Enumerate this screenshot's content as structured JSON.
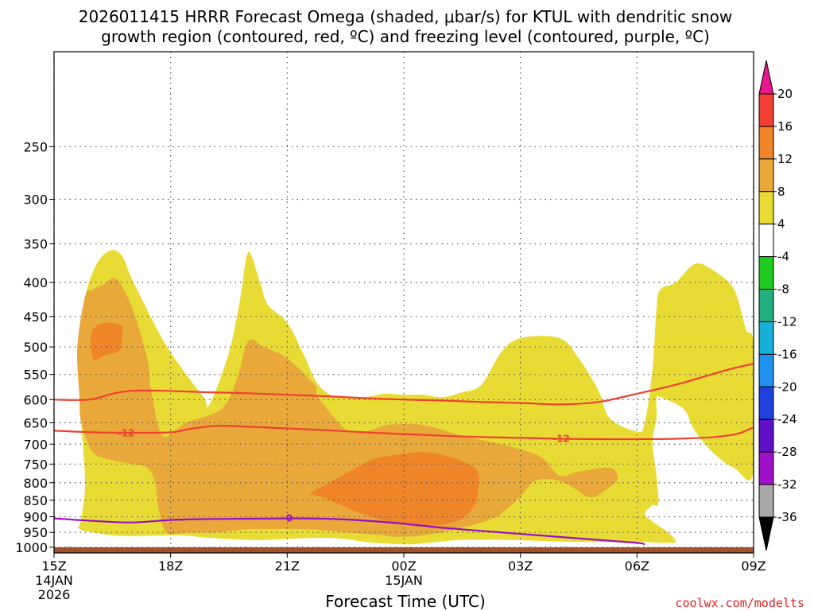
{
  "chart_data": {
    "type": "time-height cross section (filled contour)",
    "title": "2026011415 HRRR Forecast Omega (shaded, μbar/s) for KTUL with dendritic snow growth region (contoured, red, ºC) and freezing level (contoured, purple, ºC)",
    "title_line1": "2026011415 HRRR Forecast Omega (shaded, μbar/s) for KTUL with dendritic snow",
    "title_line2": "growth region (contoured, red, ºC) and freezing level (contoured, purple, ºC)",
    "xlabel": "Forecast Time (UTC)",
    "ylabel": "",
    "credit": "coolwx.com/modelts",
    "x_range_hours": [
      0,
      18
    ],
    "y_range_hpa": [
      1020,
      180
    ],
    "y_ticks": [
      250,
      300,
      350,
      400,
      450,
      500,
      550,
      600,
      650,
      700,
      750,
      800,
      850,
      900,
      950,
      1000
    ],
    "x_ticks": [
      {
        "hour": 0,
        "label": "15Z",
        "date": "14JAN",
        "year": "2026"
      },
      {
        "hour": 3,
        "label": "18Z"
      },
      {
        "hour": 6,
        "label": "21Z"
      },
      {
        "hour": 9,
        "label": "00Z",
        "date": "15JAN"
      },
      {
        "hour": 12,
        "label": "03Z"
      },
      {
        "hour": 15,
        "label": "06Z"
      },
      {
        "hour": 18,
        "label": "09Z"
      }
    ],
    "colorbar": {
      "levels": [
        20,
        16,
        12,
        8,
        4,
        -4,
        -8,
        -12,
        -16,
        -20,
        -24,
        -28,
        -32,
        -36
      ],
      "bins": [
        {
          "range": ">20",
          "color": "#e8168e"
        },
        {
          "range": "16 to 20",
          "color": "#f24034"
        },
        {
          "range": "12 to 16",
          "color": "#ef8428"
        },
        {
          "range": "8 to 12",
          "color": "#e8a83a"
        },
        {
          "range": "4 to 8",
          "color": "#e8dc34"
        },
        {
          "range": "-4 to 4",
          "color": "#ffffff"
        },
        {
          "range": "-8 to -4",
          "color": "#20cc20"
        },
        {
          "range": "-12 to -8",
          "color": "#20b080"
        },
        {
          "range": "-16 to -12",
          "color": "#16b0d8"
        },
        {
          "range": "-20 to -16",
          "color": "#1e90f0"
        },
        {
          "range": "-24 to -20",
          "color": "#2040e0"
        },
        {
          "range": "-28 to -24",
          "color": "#6010c8"
        },
        {
          "range": "-32 to -28",
          "color": "#a010c8"
        },
        {
          "range": "-36 to -32",
          "color": "#a8a8a8"
        },
        {
          "range": "<-36",
          "color": "#000000"
        }
      ]
    },
    "omega_regions": [
      {
        "level": "4 to 8",
        "color": "#e8dc34",
        "points": [
          [
            0.65,
            938
          ],
          [
            0.7,
            905
          ],
          [
            0.8,
            800
          ],
          [
            0.7,
            640
          ],
          [
            0.65,
            500
          ],
          [
            0.8,
            420
          ],
          [
            1.1,
            375
          ],
          [
            1.45,
            358
          ],
          [
            1.75,
            365
          ],
          [
            2.0,
            395
          ],
          [
            2.4,
            440
          ],
          [
            2.8,
            488
          ],
          [
            3.3,
            540
          ],
          [
            3.85,
            595
          ],
          [
            4.0,
            610
          ],
          [
            4.5,
            510
          ],
          [
            4.8,
            420
          ],
          [
            5.0,
            360
          ],
          [
            5.3,
            400
          ],
          [
            5.5,
            432
          ],
          [
            6.0,
            460
          ],
          [
            6.4,
            510
          ],
          [
            6.8,
            570
          ],
          [
            7.3,
            595
          ],
          [
            8.0,
            595
          ],
          [
            8.5,
            588
          ],
          [
            9.0,
            590
          ],
          [
            9.5,
            590
          ],
          [
            10.0,
            595
          ],
          [
            10.5,
            585
          ],
          [
            11.0,
            570
          ],
          [
            11.5,
            510
          ],
          [
            12.0,
            485
          ],
          [
            13.0,
            485
          ],
          [
            13.5,
            520
          ],
          [
            14.0,
            580
          ],
          [
            14.3,
            640
          ],
          [
            15.0,
            670
          ],
          [
            15.2,
            650
          ],
          [
            15.4,
            540
          ],
          [
            15.5,
            440
          ],
          [
            15.6,
            410
          ],
          [
            16.0,
            400
          ],
          [
            16.5,
            375
          ],
          [
            17.0,
            385
          ],
          [
            17.5,
            410
          ],
          [
            17.8,
            470
          ],
          [
            18.0,
            500
          ],
          [
            18.0,
            770
          ],
          [
            17.5,
            760
          ],
          [
            17.0,
            725
          ],
          [
            16.5,
            670
          ],
          [
            16.2,
            620
          ],
          [
            15.6,
            595
          ],
          [
            15.5,
            600
          ],
          [
            15.5,
            640
          ],
          [
            15.4,
            695
          ],
          [
            15.5,
            780
          ],
          [
            15.55,
            860
          ],
          [
            15.4,
            865
          ],
          [
            15.2,
            890
          ],
          [
            15.4,
            915
          ],
          [
            15.8,
            950
          ],
          [
            16.0,
            980
          ],
          [
            15.8,
            985
          ],
          [
            15.0,
            982
          ],
          [
            13.5,
            982
          ],
          [
            12.5,
            978
          ],
          [
            11.5,
            975
          ],
          [
            10.5,
            975
          ],
          [
            10.0,
            980
          ],
          [
            9.2,
            990
          ],
          [
            8.6,
            988
          ],
          [
            8.0,
            982
          ],
          [
            7.5,
            972
          ],
          [
            6.9,
            968
          ],
          [
            6.0,
            972
          ],
          [
            5.5,
            975
          ],
          [
            5.0,
            975
          ],
          [
            4.0,
            968
          ],
          [
            3.5,
            962
          ],
          [
            3.0,
            960
          ],
          [
            2.0,
            962
          ],
          [
            1.5,
            960
          ],
          [
            1.0,
            950
          ]
        ]
      },
      {
        "level": "8 to 12",
        "color": "#e8a83a",
        "points": [
          [
            0.6,
            500
          ],
          [
            0.8,
            420
          ],
          [
            1.0,
            410
          ],
          [
            1.3,
            402
          ],
          [
            1.6,
            395
          ],
          [
            2.0,
            435
          ],
          [
            2.4,
            520
          ],
          [
            2.5,
            580
          ],
          [
            2.8,
            680
          ],
          [
            3.4,
            650
          ],
          [
            4.3,
            620
          ],
          [
            4.7,
            560
          ],
          [
            5.0,
            490
          ],
          [
            5.4,
            500
          ],
          [
            6.0,
            520
          ],
          [
            6.7,
            570
          ],
          [
            6.8,
            595
          ],
          [
            7.5,
            665
          ],
          [
            8.0,
            670
          ],
          [
            8.6,
            655
          ],
          [
            9.5,
            655
          ],
          [
            10.5,
            680
          ],
          [
            11.5,
            700
          ],
          [
            12.5,
            730
          ],
          [
            13.0,
            780
          ],
          [
            13.5,
            770
          ],
          [
            14.3,
            760
          ],
          [
            14.5,
            790
          ],
          [
            14.2,
            820
          ],
          [
            13.8,
            842
          ],
          [
            13.3,
            810
          ],
          [
            13.0,
            795
          ],
          [
            12.6,
            790
          ],
          [
            12.3,
            800
          ],
          [
            12.0,
            840
          ],
          [
            11.6,
            880
          ],
          [
            11.3,
            905
          ],
          [
            10.5,
            935
          ],
          [
            9.5,
            960
          ],
          [
            8.8,
            965
          ],
          [
            8.5,
            960
          ],
          [
            7.5,
            950
          ],
          [
            6.5,
            940
          ],
          [
            5.0,
            940
          ],
          [
            4.2,
            950
          ],
          [
            3.5,
            950
          ],
          [
            2.9,
            950
          ],
          [
            2.7,
            880
          ],
          [
            2.6,
            800
          ],
          [
            2.4,
            760
          ],
          [
            2.0,
            750
          ],
          [
            1.5,
            740
          ],
          [
            1.0,
            720
          ],
          [
            0.7,
            650
          ],
          [
            0.65,
            590
          ]
        ]
      },
      {
        "level": "12 to 16",
        "color": "#ef8428",
        "points": [
          [
            1.0,
            520
          ],
          [
            0.95,
            480
          ],
          [
            1.1,
            465
          ],
          [
            1.4,
            460
          ],
          [
            1.75,
            465
          ],
          [
            1.75,
            480
          ],
          [
            1.7,
            505
          ],
          [
            1.55,
            510
          ],
          [
            1.3,
            515
          ],
          [
            1.1,
            522
          ]
        ]
      },
      {
        "level": "12 to 16",
        "color": "#ef8428",
        "points": [
          [
            6.6,
            830
          ],
          [
            7.0,
            805
          ],
          [
            7.6,
            770
          ],
          [
            8.2,
            738
          ],
          [
            8.9,
            725
          ],
          [
            9.6,
            720
          ],
          [
            10.4,
            738
          ],
          [
            10.9,
            770
          ],
          [
            10.9,
            830
          ],
          [
            10.8,
            870
          ],
          [
            10.4,
            912
          ],
          [
            9.6,
            930
          ],
          [
            9.0,
            925
          ],
          [
            8.0,
            895
          ],
          [
            7.3,
            860
          ],
          [
            6.9,
            840
          ]
        ]
      }
    ],
    "contours": [
      {
        "name": "dendritic growth region top (-18 C)",
        "color": "#f04030",
        "label": "",
        "points": [
          [
            0,
            600
          ],
          [
            0.9,
            600
          ],
          [
            1.5,
            588
          ],
          [
            2.0,
            582
          ],
          [
            2.8,
            582
          ],
          [
            4.0,
            585
          ],
          [
            5.0,
            587
          ],
          [
            6.0,
            590
          ],
          [
            7.0,
            593
          ],
          [
            8.0,
            597
          ],
          [
            9.0,
            600
          ],
          [
            10.0,
            602
          ],
          [
            11.0,
            605
          ],
          [
            12.0,
            607
          ],
          [
            13.0,
            610
          ],
          [
            14.0,
            605
          ],
          [
            15.0,
            588
          ],
          [
            16.0,
            570
          ],
          [
            17.0,
            548
          ],
          [
            17.5,
            538
          ],
          [
            18.0,
            530
          ]
        ]
      },
      {
        "name": "dendritic growth region bottom (-12 C)",
        "color": "#f04030",
        "label": "-12",
        "label_at": [
          1.85,
          674
        ],
        "points": [
          [
            0,
            668
          ],
          [
            1.0,
            672
          ],
          [
            2.0,
            673
          ],
          [
            3.0,
            672
          ],
          [
            3.5,
            664
          ],
          [
            4.2,
            657
          ],
          [
            5.0,
            659
          ],
          [
            6.0,
            663
          ],
          [
            7.0,
            667
          ],
          [
            8.0,
            672
          ],
          [
            9.0,
            676
          ],
          [
            10.0,
            680
          ],
          [
            11.0,
            683
          ],
          [
            12.0,
            685
          ],
          [
            13.0,
            687
          ],
          [
            14.0,
            688
          ],
          [
            15.0,
            688
          ],
          [
            16.0,
            687
          ],
          [
            17.0,
            683
          ],
          [
            17.6,
            675
          ],
          [
            18.0,
            660
          ]
        ]
      },
      {
        "name": "-12 label 2",
        "color": "#f04030",
        "label": "-12",
        "label_at": [
          13.05,
          687
        ],
        "points": []
      },
      {
        "name": "freezing level (0 C)",
        "color": "#9a10c0",
        "label": "0",
        "label_at": [
          6.05,
          905
        ],
        "points": [
          [
            0,
            905
          ],
          [
            1.0,
            913
          ],
          [
            2.0,
            918
          ],
          [
            3.0,
            910
          ],
          [
            4.0,
            907
          ],
          [
            5.0,
            906
          ],
          [
            6.0,
            905
          ],
          [
            7.0,
            906
          ],
          [
            8.0,
            912
          ],
          [
            9.0,
            922
          ],
          [
            10.0,
            935
          ],
          [
            11.0,
            945
          ],
          [
            12.0,
            955
          ],
          [
            13.0,
            965
          ],
          [
            14.0,
            975
          ],
          [
            15.0,
            985
          ],
          [
            15.2,
            990
          ]
        ]
      }
    ],
    "ground": {
      "top_hpa": 1000,
      "color": "#a0522d"
    }
  }
}
